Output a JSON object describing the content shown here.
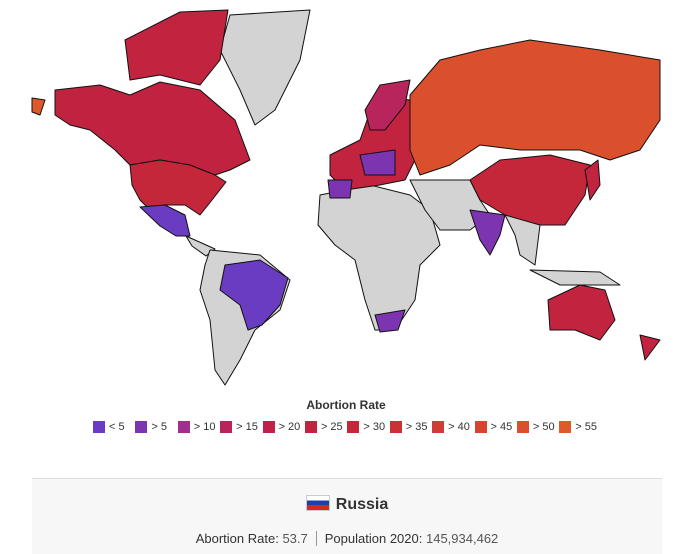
{
  "legend": {
    "title": "Abortion Rate",
    "items": [
      {
        "label": "< 5",
        "color": "#6a3cc2"
      },
      {
        "label": "> 5",
        "color": "#7c34b0"
      },
      {
        "label": "> 10",
        "color": "#a02f8e"
      },
      {
        "label": "> 15",
        "color": "#b8245c"
      },
      {
        "label": "> 20",
        "color": "#bf2249"
      },
      {
        "label": "> 25",
        "color": "#c2233f"
      },
      {
        "label": "> 30",
        "color": "#c5273a"
      },
      {
        "label": "> 35",
        "color": "#ca3236"
      },
      {
        "label": "> 40",
        "color": "#d03b33"
      },
      {
        "label": "> 45",
        "color": "#d5452f"
      },
      {
        "label": "> 50",
        "color": "#da4f2c"
      },
      {
        "label": "> 55",
        "color": "#df5a2a"
      }
    ]
  },
  "info": {
    "country": "Russia",
    "stats": [
      {
        "label": "Abortion Rate:",
        "value": "53.7"
      },
      {
        "label": "Population 2020:",
        "value": "145,934,462"
      }
    ]
  }
}
